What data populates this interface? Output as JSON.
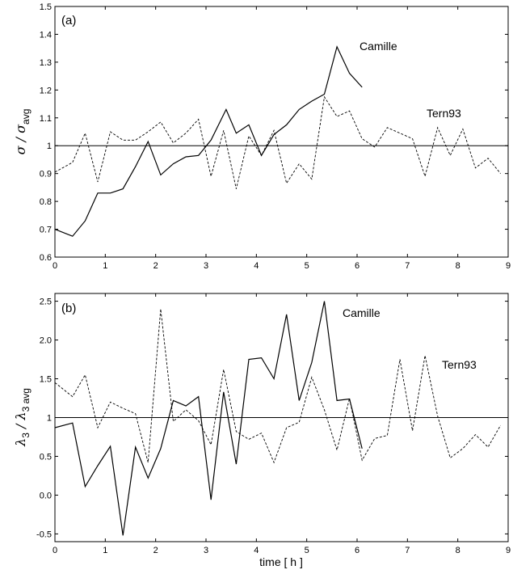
{
  "chart_data": [
    {
      "type": "line",
      "panel_label": "(a)",
      "ylabel": {
        "main": "σ",
        "slash": " / ",
        "den": "σ",
        "den_sub": "avg"
      },
      "xlim": [
        0,
        9
      ],
      "ylim": [
        0.6,
        1.5
      ],
      "xticks": [
        0,
        1,
        2,
        3,
        4,
        5,
        6,
        7,
        8,
        9
      ],
      "yticks": [
        0.6,
        0.7,
        0.8,
        0.9,
        1,
        1.1,
        1.2,
        1.3,
        1.4,
        1.5
      ],
      "ytick_labels": [
        "0.6",
        "0.7",
        "0.8",
        "0.9",
        "1",
        "1.1",
        "1.2",
        "1.3",
        "1.4",
        "1.5"
      ],
      "reference_line": 1,
      "series": [
        {
          "name": "Camille",
          "style": "solid",
          "x": [
            0,
            0.35,
            0.6,
            0.85,
            1.1,
            1.35,
            1.6,
            1.85,
            2.1,
            2.35,
            2.6,
            2.85,
            3.1,
            3.4,
            3.6,
            3.85,
            4.1,
            4.35,
            4.6,
            4.85,
            5.1,
            5.35,
            5.6,
            5.85,
            6.1
          ],
          "y": [
            0.7,
            0.675,
            0.73,
            0.83,
            0.83,
            0.845,
            0.925,
            1.015,
            0.895,
            0.935,
            0.96,
            0.965,
            1.02,
            1.13,
            1.045,
            1.075,
            0.965,
            1.04,
            1.075,
            1.13,
            1.16,
            1.185,
            1.355,
            1.26,
            1.21
          ]
        },
        {
          "name": "Tern93",
          "style": "dashed",
          "x": [
            0,
            0.35,
            0.6,
            0.85,
            1.1,
            1.35,
            1.6,
            1.85,
            2.1,
            2.35,
            2.6,
            2.85,
            3.1,
            3.35,
            3.6,
            3.85,
            4.1,
            4.35,
            4.6,
            4.85,
            5.1,
            5.35,
            5.6,
            5.85,
            6.1,
            6.35,
            6.6,
            6.85,
            7.1,
            7.35,
            7.6,
            7.85,
            8.1,
            8.35,
            8.6,
            8.85
          ],
          "y": [
            0.905,
            0.94,
            1.045,
            0.87,
            1.05,
            1.02,
            1.02,
            1.05,
            1.085,
            1.01,
            1.045,
            1.095,
            0.89,
            1.055,
            0.845,
            1.035,
            0.965,
            1.055,
            0.865,
            0.935,
            0.88,
            1.175,
            1.105,
            1.125,
            1.025,
            0.995,
            1.065,
            1.045,
            1.025,
            0.89,
            1.065,
            0.965,
            1.06,
            0.92,
            0.955,
            0.9
          ]
        }
      ]
    },
    {
      "type": "line",
      "panel_label": "(b)",
      "ylabel": {
        "main": "λ",
        "main_sub": "3",
        "slash": " / ",
        "den": "λ",
        "den_sub": "3 avg"
      },
      "xlabel": "time  [ h ]",
      "xlim": [
        0,
        9
      ],
      "ylim": [
        -0.6,
        2.6
      ],
      "xticks": [
        0,
        1,
        2,
        3,
        4,
        5,
        6,
        7,
        8,
        9
      ],
      "yticks": [
        -0.5,
        0,
        0.5,
        1,
        1.5,
        2,
        2.5
      ],
      "ytick_labels": [
        "-0.5",
        "0.0",
        "0.5",
        "1",
        "1.5",
        "2.0",
        "2.5"
      ],
      "reference_line": 1,
      "series": [
        {
          "name": "Camille",
          "style": "solid",
          "x": [
            0,
            0.35,
            0.6,
            0.85,
            1.1,
            1.35,
            1.6,
            1.85,
            2.1,
            2.35,
            2.6,
            2.85,
            3.1,
            3.35,
            3.6,
            3.85,
            4.1,
            4.35,
            4.6,
            4.85,
            5.1,
            5.35,
            5.6,
            5.85,
            6.1
          ],
          "y": [
            0.87,
            0.93,
            0.11,
            0.38,
            0.63,
            -0.52,
            0.62,
            0.22,
            0.6,
            1.22,
            1.15,
            1.27,
            -0.06,
            1.33,
            0.4,
            1.75,
            1.77,
            1.5,
            2.33,
            1.22,
            1.71,
            2.5,
            1.22,
            1.24,
            0.6
          ]
        },
        {
          "name": "Tern93",
          "style": "dashed",
          "x": [
            0,
            0.35,
            0.6,
            0.85,
            1.1,
            1.35,
            1.6,
            1.85,
            2.1,
            2.35,
            2.6,
            2.85,
            3.1,
            3.35,
            3.6,
            3.85,
            4.1,
            4.35,
            4.6,
            4.85,
            5.1,
            5.35,
            5.6,
            5.85,
            6.1,
            6.35,
            6.6,
            6.85,
            7.1,
            7.35,
            7.6,
            7.85,
            8.1,
            8.35,
            8.6,
            8.85
          ],
          "y": [
            1.45,
            1.27,
            1.55,
            0.87,
            1.2,
            1.12,
            1.05,
            0.42,
            2.4,
            0.95,
            1.1,
            0.96,
            0.65,
            1.62,
            0.82,
            0.72,
            0.8,
            0.42,
            0.87,
            0.94,
            1.52,
            1.1,
            0.58,
            1.25,
            0.45,
            0.73,
            0.77,
            1.75,
            0.83,
            1.8,
            1.02,
            0.48,
            0.6,
            0.78,
            0.62,
            0.9
          ]
        }
      ]
    }
  ]
}
